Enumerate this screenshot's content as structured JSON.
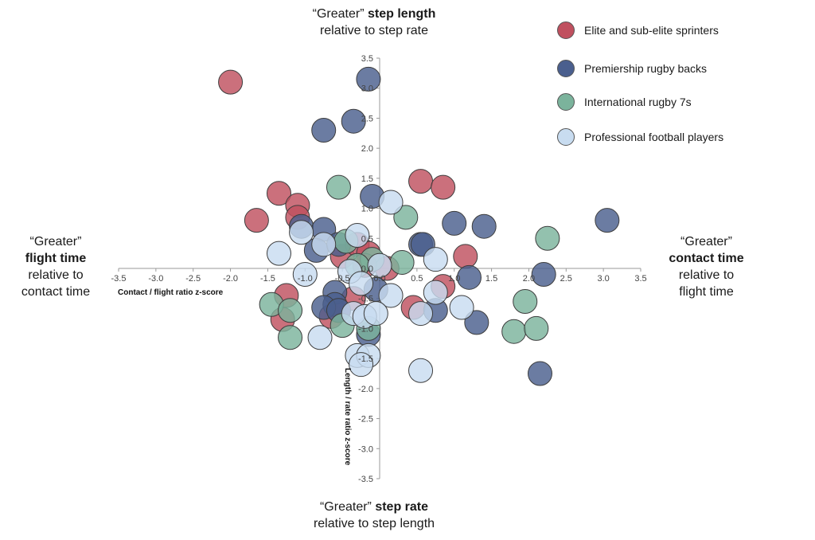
{
  "quadrants": {
    "top": {
      "pre": "“Greater” ",
      "strong": "step length",
      "line2": "relative to step rate"
    },
    "bottom": {
      "pre": "“Greater” ",
      "strong": "step rate",
      "line2": "relative to step length"
    },
    "left": {
      "line1": "“Greater”",
      "strong": "flight time",
      "line3": "relative to",
      "line4": "contact time"
    },
    "right": {
      "line1": "“Greater”",
      "strong": "contact time",
      "line3": "relative to",
      "line4": "flight time"
    }
  },
  "chart_data": {
    "type": "scatter",
    "xlabel": "Contact / flight ratio z-score",
    "ylabel": "Length / rate ratio z-score",
    "xlim": [
      -3.5,
      3.5
    ],
    "ylim": [
      -3.5,
      3.5
    ],
    "x_ticks": [
      "-3.5",
      "-3.0",
      "-2.5",
      "-2.0",
      "-1.5",
      "-1.0",
      "-0.5",
      "0.0",
      "0.5",
      "1.0",
      "1.5",
      "2.0",
      "2.5",
      "3.0",
      "3.5"
    ],
    "y_ticks": [
      "3.5",
      "3.0",
      "2.5",
      "2.0",
      "1.5",
      "1.0",
      "0.5",
      "0.0",
      "-0.5",
      "-1.0",
      "-1.5",
      "-2.0",
      "-2.5",
      "-3.0",
      "-3.5"
    ],
    "legend_position": "top-right",
    "series": [
      {
        "name": "Elite and sub-elite sprinters",
        "color": "#c0505f",
        "points": [
          [
            -2.0,
            3.1
          ],
          [
            -1.65,
            0.8
          ],
          [
            -1.35,
            1.25
          ],
          [
            -1.1,
            1.05
          ],
          [
            -1.1,
            0.85
          ],
          [
            -0.5,
            0.2
          ],
          [
            -0.3,
            0.4
          ],
          [
            -0.15,
            0.25
          ],
          [
            0.1,
            0.0
          ],
          [
            0.55,
            1.45
          ],
          [
            0.85,
            1.35
          ],
          [
            1.15,
            0.2
          ],
          [
            0.85,
            -0.3
          ],
          [
            0.45,
            -0.65
          ],
          [
            -1.25,
            -0.45
          ],
          [
            -1.3,
            -0.85
          ],
          [
            -0.65,
            -0.8
          ],
          [
            -0.55,
            -0.7
          ],
          [
            -0.35,
            -0.5
          ],
          [
            -0.2,
            0.05
          ]
        ]
      },
      {
        "name": "Premiership rugby backs",
        "color": "#4a5f8e",
        "points": [
          [
            -0.15,
            3.15
          ],
          [
            -0.35,
            2.45
          ],
          [
            -0.75,
            2.3
          ],
          [
            -0.1,
            1.2
          ],
          [
            -1.05,
            0.7
          ],
          [
            -0.75,
            0.65
          ],
          [
            -0.85,
            0.3
          ],
          [
            -0.55,
            0.4
          ],
          [
            0.55,
            0.4
          ],
          [
            0.58,
            0.4
          ],
          [
            1.0,
            0.75
          ],
          [
            1.4,
            0.7
          ],
          [
            3.05,
            0.8
          ],
          [
            2.2,
            -0.1
          ],
          [
            1.2,
            -0.15
          ],
          [
            -0.05,
            -0.35
          ],
          [
            -0.6,
            -0.4
          ],
          [
            -0.6,
            -0.6
          ],
          [
            -0.75,
            -0.65
          ],
          [
            -0.55,
            -0.7
          ],
          [
            0.75,
            -0.7
          ],
          [
            1.3,
            -0.9
          ],
          [
            -0.15,
            -1.1
          ],
          [
            2.15,
            -1.75
          ]
        ]
      },
      {
        "name": "International rugby 7s",
        "color": "#7bb39c",
        "points": [
          [
            -0.55,
            1.35
          ],
          [
            0.35,
            0.85
          ],
          [
            -0.45,
            0.45
          ],
          [
            0.3,
            0.1
          ],
          [
            -0.1,
            0.15
          ],
          [
            2.25,
            0.5
          ],
          [
            -1.45,
            -0.6
          ],
          [
            -1.2,
            -0.7
          ],
          [
            -1.2,
            -1.15
          ],
          [
            -0.5,
            -0.95
          ],
          [
            -0.15,
            -1.0
          ],
          [
            1.95,
            -0.55
          ],
          [
            1.8,
            -1.05
          ],
          [
            2.1,
            -1.0
          ],
          [
            -0.3,
            0.05
          ]
        ]
      },
      {
        "name": "Professional football players",
        "color": "#c8dcf0",
        "points": [
          [
            0.15,
            1.1
          ],
          [
            -1.05,
            0.6
          ],
          [
            -1.35,
            0.25
          ],
          [
            -0.3,
            0.55
          ],
          [
            -0.75,
            0.4
          ],
          [
            0.75,
            0.15
          ],
          [
            -1.0,
            -0.1
          ],
          [
            -0.4,
            -0.05
          ],
          [
            0.0,
            0.05
          ],
          [
            -0.25,
            -0.25
          ],
          [
            0.15,
            -0.45
          ],
          [
            0.75,
            -0.4
          ],
          [
            0.55,
            -0.75
          ],
          [
            1.1,
            -0.65
          ],
          [
            -0.35,
            -0.75
          ],
          [
            -0.2,
            -0.8
          ],
          [
            -0.8,
            -1.15
          ],
          [
            -0.05,
            -0.75
          ],
          [
            -0.3,
            -1.45
          ],
          [
            -0.15,
            -1.45
          ],
          [
            -0.25,
            -1.6
          ],
          [
            0.55,
            -1.7
          ]
        ]
      }
    ]
  }
}
